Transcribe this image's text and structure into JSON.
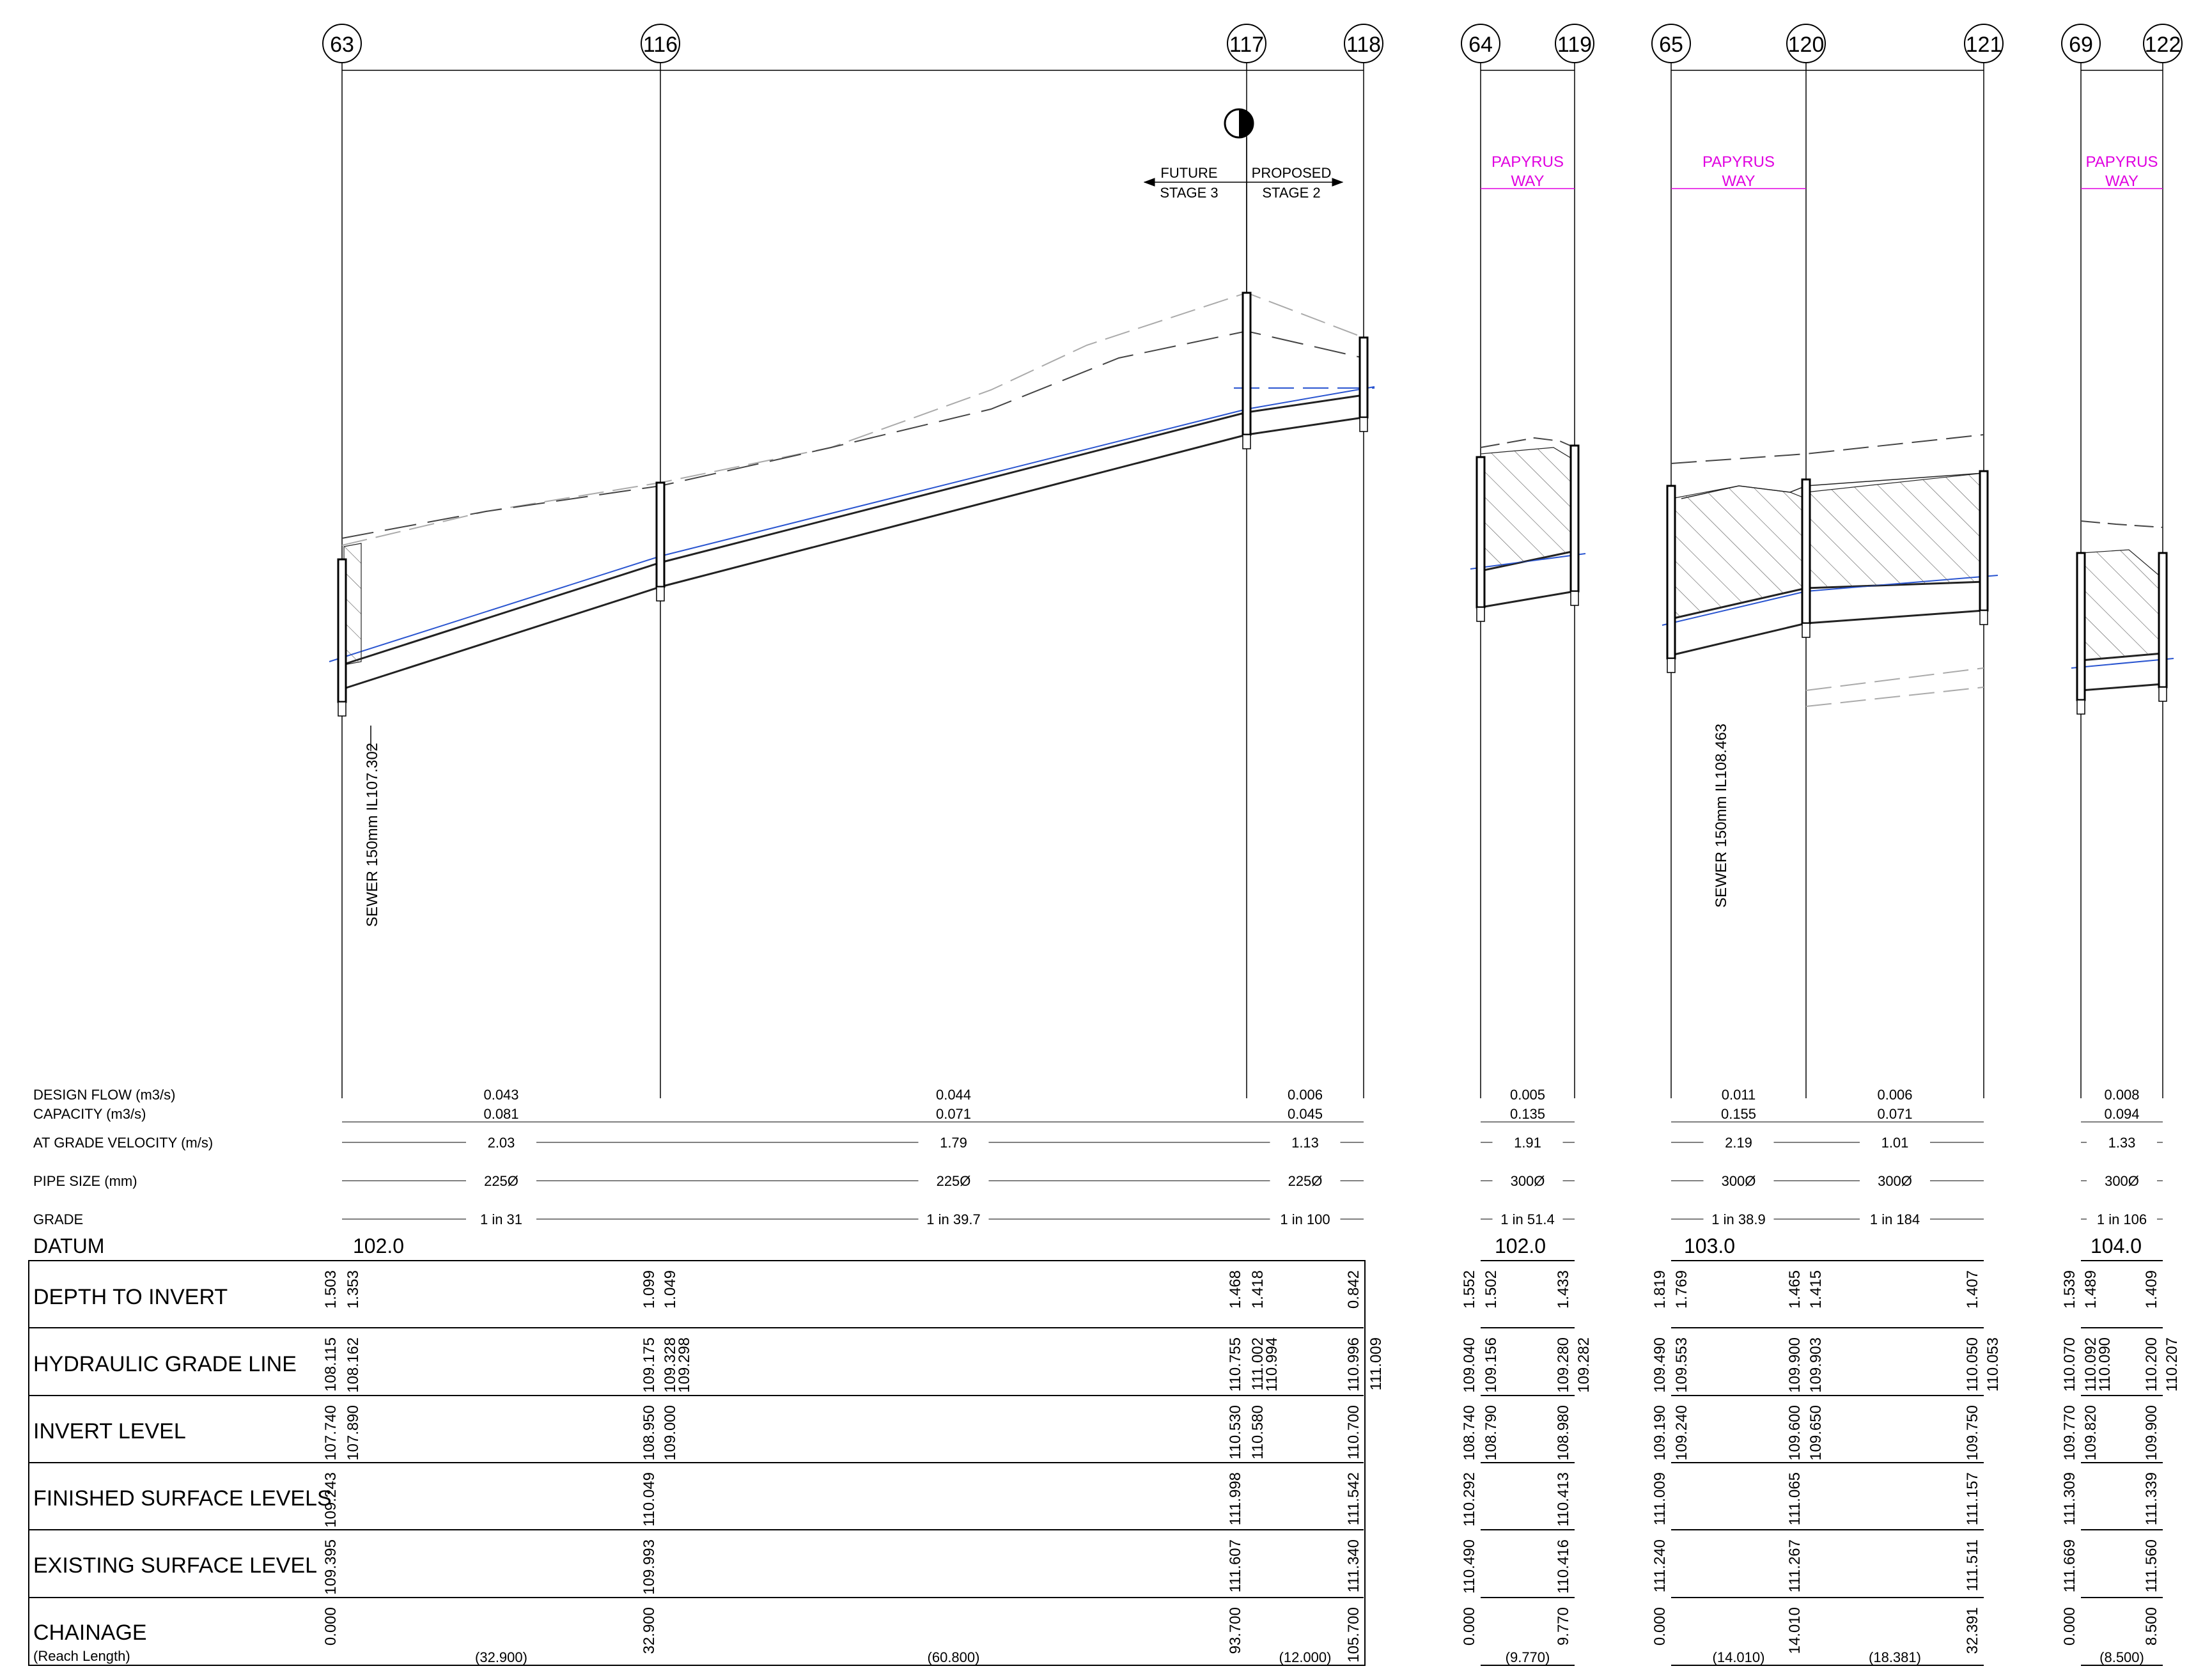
{
  "manholes": [
    "63",
    "116",
    "117",
    "118",
    "64",
    "119",
    "65",
    "120",
    "121",
    "69",
    "122"
  ],
  "annotations": {
    "future": "FUTURE",
    "stage3": "STAGE 3",
    "proposed": "PROPOSED",
    "stage2": "STAGE 2",
    "papyrus": "PAPYRUS",
    "way": "WAY",
    "sewer1": "SEWER 150mm  IL107.302",
    "sewer2": "SEWER 150mm  IL108.463"
  },
  "row_labels": {
    "design_flow": "DESIGN FLOW (m3/s)",
    "capacity": "CAPACITY (m3/s)",
    "velocity": "AT GRADE VELOCITY (m/s)",
    "pipe_size": "PIPE SIZE (mm)",
    "grade": "GRADE",
    "datum": "DATUM",
    "depth": "DEPTH TO INVERT",
    "hgl": "HYDRAULIC GRADE LINE",
    "invert": "INVERT LEVEL",
    "fsl": "FINISHED SURFACE LEVELS",
    "esl": "EXISTING SURFACE LEVEL",
    "chainage": "CHAINAGE",
    "reach": "(Reach Length)"
  },
  "datums": [
    "102.0",
    "102.0",
    "103.0",
    "104.0"
  ],
  "reaches": [
    {
      "flow": "0.043",
      "capacity": "0.081",
      "velocity": "2.03",
      "pipe": "225Ø",
      "grade": "1 in 31",
      "length": "(32.900)"
    },
    {
      "flow": "0.044",
      "capacity": "0.071",
      "velocity": "1.79",
      "pipe": "225Ø",
      "grade": "1 in 39.7",
      "length": "(60.800)"
    },
    {
      "flow": "0.006",
      "capacity": "0.045",
      "velocity": "1.13",
      "pipe": "225Ø",
      "grade": "1 in 100",
      "length": "(12.000)"
    },
    {
      "flow": "0.005",
      "capacity": "0.135",
      "velocity": "1.91",
      "pipe": "300Ø",
      "grade": "1 in 51.4",
      "length": "(9.770)"
    },
    {
      "flow": "0.011",
      "capacity": "0.155",
      "velocity": "2.19",
      "pipe": "300Ø",
      "grade": "1 in 38.9",
      "length": "(14.010)"
    },
    {
      "flow": "0.006",
      "capacity": "0.071",
      "velocity": "1.01",
      "pipe": "300Ø",
      "grade": "1 in 184",
      "length": "(18.381)"
    },
    {
      "flow": "0.008",
      "capacity": "0.094",
      "velocity": "1.33",
      "pipe": "300Ø",
      "grade": "1 in 106",
      "length": "(8.500)"
    }
  ],
  "table_values": {
    "depth": [
      "1.503",
      "1.353",
      "1.099",
      "1.049",
      "1.468",
      "1.418",
      "0.842",
      "1.552",
      "1.502",
      "1.433",
      "1.819",
      "1.769",
      "1.465",
      "1.415",
      "1.407",
      "1.539",
      "1.489",
      "1.409"
    ],
    "hgl": [
      "108.115",
      "108.162",
      "109.175",
      "109.328",
      "109.298",
      "110.755",
      "111.002",
      "110.994",
      "110.996",
      "111.009",
      "109.040",
      "109.156",
      "109.280",
      "109.282",
      "109.490",
      "109.553",
      "109.900",
      "109.903",
      "110.050",
      "110.053",
      "110.070",
      "110.092",
      "110.090",
      "110.200",
      "110.207"
    ],
    "invert": [
      "107.740",
      "107.890",
      "108.950",
      "109.000",
      "110.530",
      "110.580",
      "110.700",
      "108.740",
      "108.790",
      "108.980",
      "109.190",
      "109.240",
      "109.600",
      "109.650",
      "109.750",
      "109.770",
      "109.820",
      "109.900"
    ],
    "fsl": [
      "109.243",
      "110.049",
      "111.998",
      "111.542",
      "110.292",
      "110.413",
      "111.009",
      "111.065",
      "111.157",
      "111.309",
      "111.339"
    ],
    "esl": [
      "109.395",
      "109.993",
      "111.607",
      "111.340",
      "110.490",
      "110.416",
      "111.240",
      "111.267",
      "111.511",
      "111.669",
      "111.560"
    ],
    "chainage": [
      "0.000",
      "32.900",
      "93.700",
      "105.700",
      "0.000",
      "9.770",
      "0.000",
      "14.010",
      "32.391",
      "0.000",
      "8.500"
    ]
  }
}
